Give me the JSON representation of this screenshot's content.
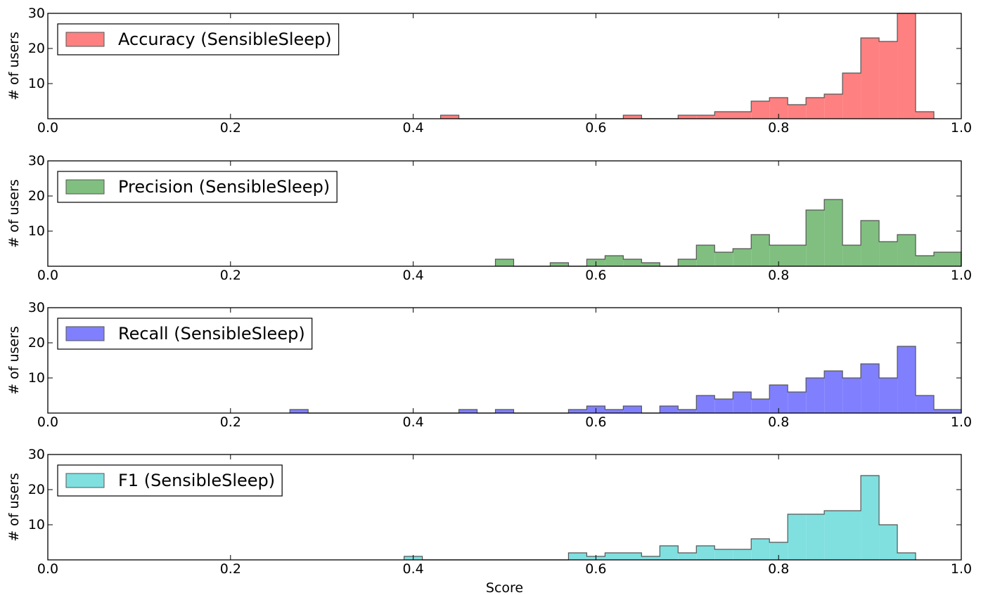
{
  "chart_data": {
    "type": "histogram",
    "xlabel": "Score",
    "shared_x_axis": {
      "xlim": [
        0.0,
        1.0
      ],
      "ticks": [
        0.0,
        0.2,
        0.4,
        0.6,
        0.8,
        1.0
      ],
      "tick_labels": [
        "0.0",
        "0.2",
        "0.4",
        "0.6",
        "0.8",
        "1.0"
      ]
    },
    "panels": [
      {
        "legend_label": "Accuracy (SensibleSleep)",
        "color": "#ff8080",
        "ylabel": "# of users",
        "ylim": [
          0,
          30
        ],
        "yticks": [
          10,
          20,
          30
        ],
        "ytick_labels": [
          "10",
          "20",
          "30"
        ],
        "bin_edges": [
          0.43,
          0.45,
          0.63,
          0.65,
          0.69,
          0.71,
          0.73,
          0.77,
          0.79,
          0.81,
          0.83,
          0.85,
          0.87,
          0.89,
          0.91,
          0.93,
          0.95,
          0.97
        ],
        "counts": [
          1,
          0,
          1,
          0,
          1,
          1,
          2,
          5,
          6,
          4,
          6,
          7,
          13,
          23,
          22,
          30,
          2
        ],
        "legend_position": "upper left"
      },
      {
        "legend_label": "Precision (SensibleSleep)",
        "color": "#80bf80",
        "ylabel": "# of users",
        "ylim": [
          0,
          30
        ],
        "yticks": [
          10,
          20,
          30
        ],
        "ytick_labels": [
          "10",
          "20",
          "30"
        ],
        "bin_edges": [
          0.49,
          0.51,
          0.55,
          0.57,
          0.59,
          0.61,
          0.63,
          0.65,
          0.67,
          0.69,
          0.71,
          0.73,
          0.75,
          0.77,
          0.79,
          0.83,
          0.85,
          0.87,
          0.89,
          0.91,
          0.93,
          0.95,
          0.97,
          0.99,
          1.0
        ],
        "counts": [
          2,
          0,
          1,
          0,
          2,
          3,
          2,
          1,
          0,
          2,
          6,
          4,
          5,
          9,
          6,
          16,
          19,
          6,
          13,
          7,
          9,
          3,
          4,
          4
        ],
        "legend_position": "upper left"
      },
      {
        "legend_label": "Recall (SensibleSleep)",
        "color": "#8080ff",
        "ylabel": "# of users",
        "ylim": [
          0,
          30
        ],
        "yticks": [
          10,
          20,
          30
        ],
        "ytick_labels": [
          "10",
          "20",
          "30"
        ],
        "bin_edges": [
          0.265,
          0.285,
          0.45,
          0.47,
          0.49,
          0.51,
          0.57,
          0.59,
          0.61,
          0.63,
          0.65,
          0.67,
          0.69,
          0.71,
          0.73,
          0.75,
          0.77,
          0.79,
          0.81,
          0.83,
          0.85,
          0.87,
          0.89,
          0.91,
          0.93,
          0.95,
          0.97,
          0.99,
          1.0
        ],
        "counts": [
          1,
          0,
          1,
          0,
          1,
          0,
          1,
          2,
          1,
          2,
          0,
          2,
          1,
          5,
          4,
          6,
          4,
          8,
          6,
          10,
          12,
          10,
          14,
          10,
          19,
          5,
          1,
          1
        ],
        "legend_position": "upper left"
      },
      {
        "legend_label": "F1 (SensibleSleep)",
        "color": "#80dfdf",
        "ylabel": "# of users",
        "ylim": [
          0,
          30
        ],
        "yticks": [
          10,
          20,
          30
        ],
        "ytick_labels": [
          "10",
          "20",
          "30"
        ],
        "bin_edges": [
          0.39,
          0.41,
          0.57,
          0.59,
          0.61,
          0.65,
          0.67,
          0.69,
          0.71,
          0.73,
          0.75,
          0.77,
          0.79,
          0.81,
          0.83,
          0.85,
          0.89,
          0.91,
          0.93,
          0.95
        ],
        "counts": [
          1,
          0,
          2,
          1,
          2,
          1,
          4,
          2,
          4,
          3,
          3,
          6,
          5,
          13,
          13,
          14,
          24,
          10,
          2
        ],
        "legend_position": "upper left"
      }
    ]
  }
}
